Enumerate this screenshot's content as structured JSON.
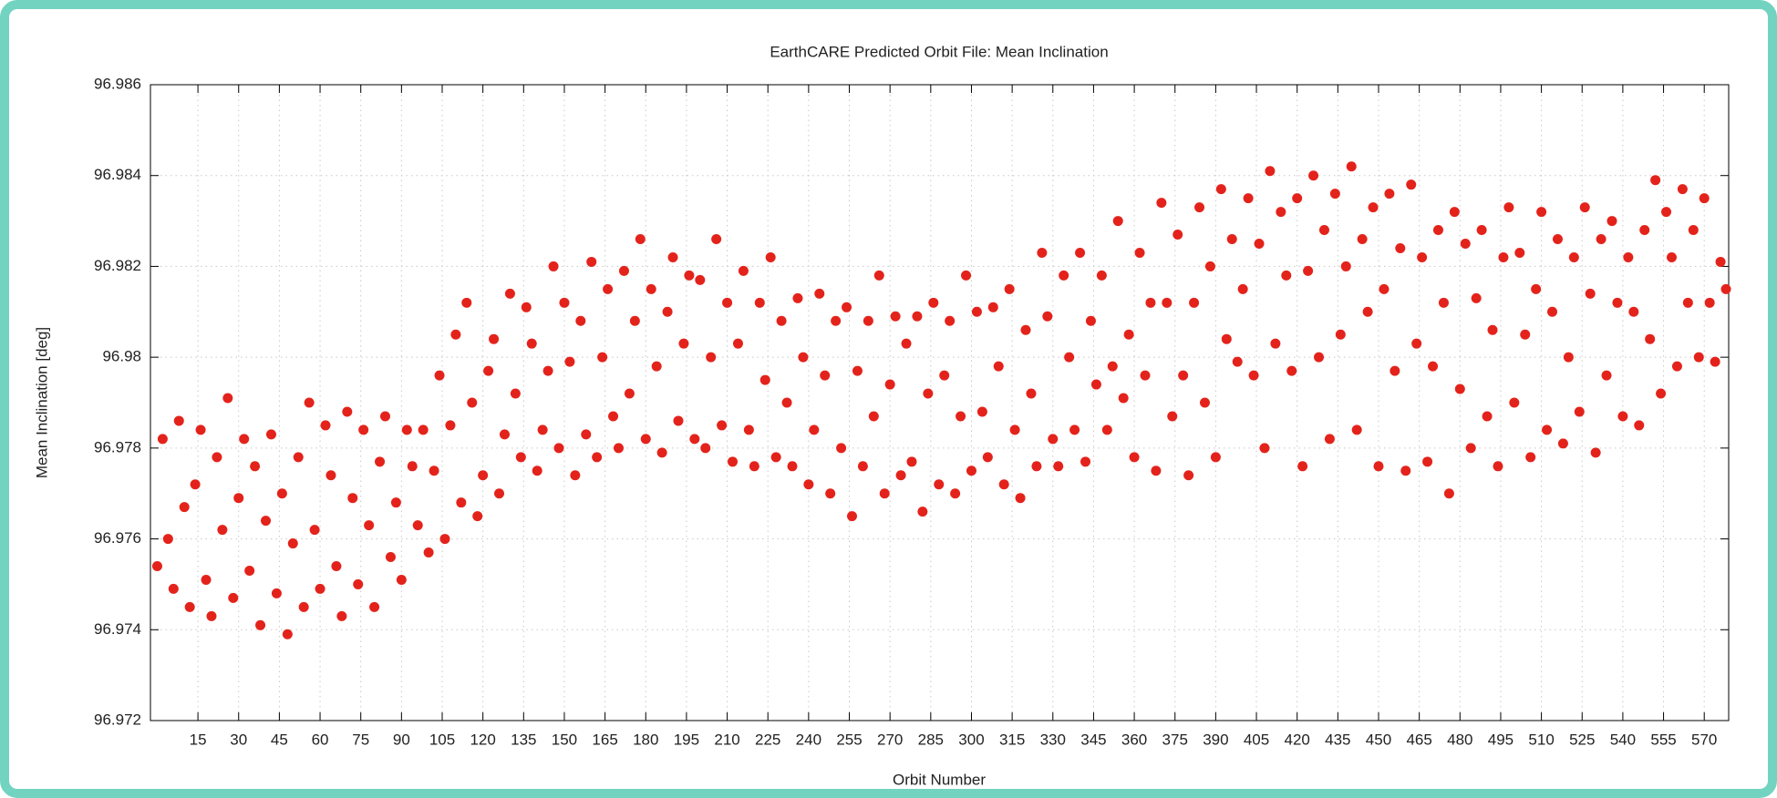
{
  "chart_data": {
    "type": "scatter",
    "title": "EarthCARE Predicted Orbit File: Mean Inclination",
    "x_label": "Orbit Number",
    "y_label": "Mean Inclination [deg]",
    "color": "#e3231b",
    "grid": true,
    "xlim": [
      -2.5,
      579
    ],
    "ylim": [
      96.972,
      96.986
    ],
    "xticks": [
      15,
      30,
      45,
      60,
      75,
      90,
      105,
      120,
      135,
      150,
      165,
      180,
      195,
      210,
      225,
      240,
      255,
      270,
      285,
      300,
      315,
      330,
      345,
      360,
      375,
      390,
      405,
      420,
      435,
      450,
      465,
      480,
      495,
      510,
      525,
      540,
      555,
      570
    ],
    "yticks": [
      96.972,
      96.974,
      96.976,
      96.978,
      96.98,
      96.982,
      96.984,
      96.986
    ],
    "x": [
      0,
      2,
      4,
      6,
      8,
      10,
      12,
      14,
      16,
      18,
      20,
      22,
      24,
      26,
      28,
      30,
      32,
      34,
      36,
      38,
      40,
      42,
      44,
      46,
      48,
      50,
      52,
      54,
      56,
      58,
      60,
      62,
      64,
      66,
      68,
      70,
      72,
      74,
      76,
      78,
      80,
      82,
      84,
      86,
      88,
      90,
      92,
      94,
      96,
      98,
      100,
      102,
      104,
      106,
      108,
      110,
      112,
      114,
      116,
      118,
      120,
      122,
      124,
      126,
      128,
      130,
      132,
      134,
      136,
      138,
      140,
      142,
      144,
      146,
      148,
      150,
      152,
      154,
      156,
      158,
      160,
      162,
      164,
      166,
      168,
      170,
      172,
      174,
      176,
      178,
      180,
      182,
      184,
      186,
      188,
      190,
      192,
      194,
      196,
      198,
      200,
      202,
      204,
      206,
      208,
      210,
      212,
      214,
      216,
      218,
      220,
      222,
      224,
      226,
      228,
      230,
      232,
      234,
      236,
      238,
      240,
      242,
      244,
      246,
      248,
      250,
      252,
      254,
      256,
      258,
      260,
      262,
      264,
      266,
      268,
      270,
      272,
      274,
      276,
      278,
      280,
      282,
      284,
      286,
      288,
      290,
      292,
      294,
      296,
      298,
      300,
      302,
      304,
      306,
      308,
      310,
      312,
      314,
      316,
      318,
      320,
      322,
      324,
      326,
      328,
      330,
      332,
      334,
      336,
      338,
      340,
      342,
      344,
      346,
      348,
      350,
      352,
      354,
      356,
      358,
      360,
      362,
      364,
      366,
      368,
      370,
      372,
      374,
      376,
      378,
      380,
      382,
      384,
      386,
      388,
      390,
      392,
      394,
      396,
      398,
      400,
      402,
      404,
      406,
      408,
      410,
      412,
      414,
      416,
      418,
      420,
      422,
      424,
      426,
      428,
      430,
      432,
      434,
      436,
      438,
      440,
      442,
      444,
      446,
      448,
      450,
      452,
      454,
      456,
      458,
      460,
      462,
      464,
      466,
      468,
      470,
      472,
      474,
      476,
      478,
      480,
      482,
      484,
      486,
      488,
      490,
      492,
      494,
      496,
      498,
      500,
      502,
      504,
      506,
      508,
      510,
      512,
      514,
      516,
      518,
      520,
      522,
      524,
      526,
      528,
      530,
      532,
      534,
      536,
      538,
      540,
      542,
      544,
      546,
      548,
      550,
      552,
      554,
      556,
      558,
      560,
      562,
      564,
      566,
      568,
      570,
      572,
      574,
      576,
      578
    ],
    "values": [
      96.9754,
      96.9782,
      96.976,
      96.9749,
      96.9786,
      96.9767,
      96.9745,
      96.9772,
      96.9784,
      96.9751,
      96.9743,
      96.9778,
      96.9762,
      96.9791,
      96.9747,
      96.9769,
      96.9782,
      96.9753,
      96.9776,
      96.9741,
      96.9764,
      96.9783,
      96.9748,
      96.977,
      96.9739,
      96.9759,
      96.9778,
      96.9745,
      96.979,
      96.9762,
      96.9749,
      96.9785,
      96.9774,
      96.9754,
      96.9743,
      96.9788,
      96.9769,
      96.975,
      96.9784,
      96.9763,
      96.9745,
      96.9777,
      96.9787,
      96.9756,
      96.9768,
      96.9751,
      96.9784,
      96.9776,
      96.9763,
      96.9784,
      96.9757,
      96.9775,
      96.9796,
      96.976,
      96.9785,
      96.9805,
      96.9768,
      96.9812,
      96.979,
      96.9765,
      96.9774,
      96.9797,
      96.9804,
      96.977,
      96.9783,
      96.9814,
      96.9792,
      96.9778,
      96.9811,
      96.9803,
      96.9775,
      96.9784,
      96.9797,
      96.982,
      96.978,
      96.9812,
      96.9799,
      96.9774,
      96.9808,
      96.9783,
      96.9821,
      96.9778,
      96.98,
      96.9815,
      96.9787,
      96.978,
      96.9819,
      96.9792,
      96.9808,
      96.9826,
      96.9782,
      96.9815,
      96.9798,
      96.9779,
      96.981,
      96.9822,
      96.9786,
      96.9803,
      96.9818,
      96.9782,
      96.9817,
      96.978,
      96.98,
      96.9826,
      96.9785,
      96.9812,
      96.9777,
      96.9803,
      96.9819,
      96.9784,
      96.9776,
      96.9812,
      96.9795,
      96.9822,
      96.9778,
      96.9808,
      96.979,
      96.9776,
      96.9813,
      96.98,
      96.9772,
      96.9784,
      96.9814,
      96.9796,
      96.977,
      96.9808,
      96.978,
      96.9811,
      96.9765,
      96.9797,
      96.9776,
      96.9808,
      96.9787,
      96.9818,
      96.977,
      96.9794,
      96.9809,
      96.9774,
      96.9803,
      96.9777,
      96.9809,
      96.9766,
      96.9792,
      96.9812,
      96.9772,
      96.9796,
      96.9808,
      96.977,
      96.9787,
      96.9818,
      96.9775,
      96.981,
      96.9788,
      96.9778,
      96.9811,
      96.9798,
      96.9772,
      96.9815,
      96.9784,
      96.9769,
      96.9806,
      96.9792,
      96.9776,
      96.9823,
      96.9809,
      96.9782,
      96.9776,
      96.9818,
      96.98,
      96.9784,
      96.9823,
      96.9777,
      96.9808,
      96.9794,
      96.9818,
      96.9784,
      96.9798,
      96.983,
      96.9791,
      96.9805,
      96.9778,
      96.9823,
      96.9796,
      96.9812,
      96.9775,
      96.9834,
      96.9812,
      96.9787,
      96.9827,
      96.9796,
      96.9774,
      96.9812,
      96.9833,
      96.979,
      96.982,
      96.9778,
      96.9837,
      96.9804,
      96.9826,
      96.9799,
      96.9815,
      96.9835,
      96.9796,
      96.9825,
      96.978,
      96.9841,
      96.9803,
      96.9832,
      96.9818,
      96.9797,
      96.9835,
      96.9776,
      96.9819,
      96.984,
      96.98,
      96.9828,
      96.9782,
      96.9836,
      96.9805,
      96.982,
      96.9842,
      96.9784,
      96.9826,
      96.981,
      96.9833,
      96.9776,
      96.9815,
      96.9836,
      96.9797,
      96.9824,
      96.9775,
      96.9838,
      96.9803,
      96.9822,
      96.9777,
      96.9798,
      96.9828,
      96.9812,
      96.977,
      96.9832,
      96.9793,
      96.9825,
      96.978,
      96.9813,
      96.9828,
      96.9787,
      96.9806,
      96.9776,
      96.9822,
      96.9833,
      96.979,
      96.9823,
      96.9805,
      96.9778,
      96.9815,
      96.9832,
      96.9784,
      96.981,
      96.9826,
      96.9781,
      96.98,
      96.9822,
      96.9788,
      96.9833,
      96.9814,
      96.9779,
      96.9826,
      96.9796,
      96.983,
      96.9812,
      96.9787,
      96.9822,
      96.981,
      96.9785,
      96.9828,
      96.9804,
      96.9839,
      96.9792,
      96.9832,
      96.9822,
      96.9798,
      96.9837,
      96.9812,
      96.9828,
      96.98,
      96.9835,
      96.9812,
      96.9799,
      96.9821,
      96.9815
    ]
  }
}
